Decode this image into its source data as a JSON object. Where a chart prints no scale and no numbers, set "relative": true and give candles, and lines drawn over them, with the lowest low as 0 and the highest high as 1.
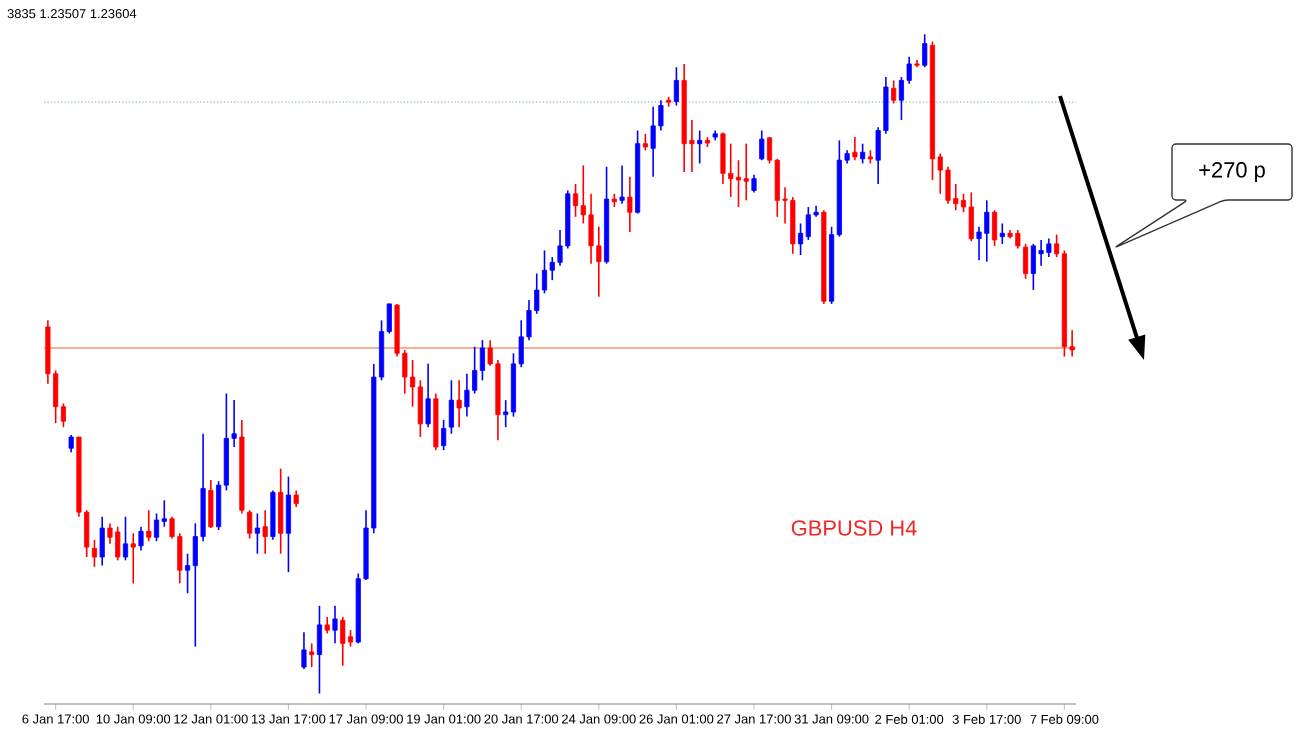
{
  "chart_data": {
    "type": "candlestick",
    "relative": true,
    "categories": [
      null,
      "6 Jan 17:00",
      null,
      null,
      null,
      null,
      null,
      null,
      null,
      null,
      null,
      "10 Jan 09:00",
      null,
      null,
      null,
      null,
      null,
      null,
      null,
      null,
      null,
      "12 Jan 01:00",
      null,
      null,
      null,
      null,
      null,
      null,
      null,
      null,
      null,
      "13 Jan 17:00",
      null,
      null,
      null,
      null,
      null,
      null,
      null,
      null,
      null,
      "17 Jan 09:00",
      null,
      null,
      null,
      null,
      null,
      null,
      null,
      null,
      null,
      "19 Jan 01:00",
      null,
      null,
      null,
      null,
      null,
      null,
      null,
      null,
      null,
      "20 Jan 17:00",
      null,
      null,
      null,
      null,
      null,
      null,
      null,
      null,
      null,
      "24 Jan 09:00",
      null,
      null,
      null,
      null,
      null,
      null,
      null,
      null,
      null,
      "26 Jan 01:00",
      null,
      null,
      null,
      null,
      null,
      null,
      null,
      null,
      null,
      "27 Jan 17:00",
      null,
      null,
      null,
      null,
      null,
      null,
      null,
      null,
      null,
      "31 Jan 09:00",
      null,
      null,
      null,
      null,
      null,
      null,
      null,
      null,
      null,
      "2 Feb 01:00",
      null,
      null,
      null,
      null,
      null,
      null,
      null,
      null,
      null,
      "3 Feb 17:00",
      null,
      null,
      null,
      null,
      null,
      null,
      null,
      null,
      null,
      "7 Feb 09:00",
      null
    ],
    "ohlc": [
      [
        0.556,
        0.566,
        0.47,
        0.485
      ],
      [
        0.485,
        0.49,
        0.41,
        0.435
      ],
      [
        0.435,
        0.44,
        0.404,
        0.413
      ],
      [
        0.372,
        0.392,
        0.366,
        0.389
      ],
      [
        0.389,
        0.389,
        0.268,
        0.275
      ],
      [
        0.275,
        0.278,
        0.207,
        0.222
      ],
      [
        0.22,
        0.233,
        0.192,
        0.207
      ],
      [
        0.207,
        0.268,
        0.194,
        0.251
      ],
      [
        0.251,
        0.258,
        0.227,
        0.237
      ],
      [
        0.245,
        0.253,
        0.202,
        0.207
      ],
      [
        0.207,
        0.268,
        0.202,
        0.227
      ],
      [
        0.227,
        0.243,
        0.167,
        0.222
      ],
      [
        0.224,
        0.253,
        0.217,
        0.246
      ],
      [
        0.246,
        0.278,
        0.231,
        0.237
      ],
      [
        0.237,
        0.273,
        0.231,
        0.263
      ],
      [
        0.261,
        0.293,
        0.253,
        0.265
      ],
      [
        0.265,
        0.268,
        0.235,
        0.238
      ],
      [
        0.238,
        0.243,
        0.167,
        0.187
      ],
      [
        0.187,
        0.212,
        0.152,
        0.194
      ],
      [
        0.194,
        0.258,
        0.071,
        0.238
      ],
      [
        0.238,
        0.394,
        0.231,
        0.311
      ],
      [
        0.308,
        0.324,
        0.251,
        0.253
      ],
      [
        0.253,
        0.322,
        0.248,
        0.316
      ],
      [
        0.316,
        0.455,
        0.308,
        0.387
      ],
      [
        0.387,
        0.445,
        0.374,
        0.394
      ],
      [
        0.389,
        0.415,
        0.273,
        0.278
      ],
      [
        0.275,
        0.278,
        0.235,
        0.243
      ],
      [
        0.243,
        0.273,
        0.212,
        0.251
      ],
      [
        0.253,
        0.278,
        0.212,
        0.238
      ],
      [
        0.238,
        0.308,
        0.233,
        0.305
      ],
      [
        0.305,
        0.341,
        0.212,
        0.243
      ],
      [
        0.243,
        0.329,
        0.184,
        0.301
      ],
      [
        0.301,
        0.308,
        0.283,
        0.288
      ],
      [
        0.04,
        0.093,
        0.037,
        0.066
      ],
      [
        0.063,
        0.076,
        0.04,
        0.059
      ],
      [
        0.059,
        0.133,
        0.0,
        0.104
      ],
      [
        0.104,
        0.116,
        0.091,
        0.096
      ],
      [
        0.096,
        0.133,
        0.076,
        0.113
      ],
      [
        0.111,
        0.116,
        0.042,
        0.076
      ],
      [
        0.086,
        0.096,
        0.071,
        0.078
      ],
      [
        0.078,
        0.182,
        0.076,
        0.174
      ],
      [
        0.174,
        0.278,
        0.172,
        0.251
      ],
      [
        0.251,
        0.5,
        0.243,
        0.48
      ],
      [
        0.48,
        0.566,
        0.475,
        0.549
      ],
      [
        0.549,
        0.591,
        0.546,
        0.591
      ],
      [
        0.589,
        0.591,
        0.511,
        0.516
      ],
      [
        0.516,
        0.521,
        0.455,
        0.48
      ],
      [
        0.48,
        0.506,
        0.435,
        0.465
      ],
      [
        0.465,
        0.475,
        0.389,
        0.409
      ],
      [
        0.409,
        0.5,
        0.404,
        0.447
      ],
      [
        0.447,
        0.455,
        0.369,
        0.374
      ],
      [
        0.376,
        0.415,
        0.369,
        0.402
      ],
      [
        0.404,
        0.475,
        0.394,
        0.445
      ],
      [
        0.445,
        0.475,
        0.404,
        0.433
      ],
      [
        0.435,
        0.485,
        0.42,
        0.46
      ],
      [
        0.46,
        0.526,
        0.455,
        0.49
      ],
      [
        0.49,
        0.536,
        0.475,
        0.524
      ],
      [
        0.524,
        0.536,
        0.497,
        0.5
      ],
      [
        0.5,
        0.506,
        0.384,
        0.423
      ],
      [
        0.423,
        0.445,
        0.404,
        0.427
      ],
      [
        0.427,
        0.516,
        0.42,
        0.5
      ],
      [
        0.5,
        0.566,
        0.495,
        0.541
      ],
      [
        0.541,
        0.597,
        0.536,
        0.581
      ],
      [
        0.581,
        0.637,
        0.576,
        0.612
      ],
      [
        0.612,
        0.672,
        0.607,
        0.642
      ],
      [
        0.642,
        0.662,
        0.627,
        0.654
      ],
      [
        0.654,
        0.703,
        0.649,
        0.679
      ],
      [
        0.679,
        0.763,
        0.675,
        0.758
      ],
      [
        0.758,
        0.773,
        0.723,
        0.74
      ],
      [
        0.74,
        0.801,
        0.713,
        0.726
      ],
      [
        0.726,
        0.758,
        0.652,
        0.679
      ],
      [
        0.679,
        0.708,
        0.602,
        0.655
      ],
      [
        0.655,
        0.799,
        0.652,
        0.75
      ],
      [
        0.75,
        0.758,
        0.738,
        0.746
      ],
      [
        0.748,
        0.801,
        0.743,
        0.753
      ],
      [
        0.753,
        0.784,
        0.7,
        0.73
      ],
      [
        0.73,
        0.854,
        0.728,
        0.834
      ],
      [
        0.834,
        0.849,
        0.824,
        0.829
      ],
      [
        0.827,
        0.89,
        0.784,
        0.861
      ],
      [
        0.861,
        0.9,
        0.854,
        0.892
      ],
      [
        0.9,
        0.905,
        0.89,
        0.897
      ],
      [
        0.898,
        0.95,
        0.892,
        0.93
      ],
      [
        0.93,
        0.955,
        0.791,
        0.834
      ],
      [
        0.839,
        0.87,
        0.791,
        0.834
      ],
      [
        0.834,
        0.854,
        0.804,
        0.839
      ],
      [
        0.839,
        0.844,
        0.829,
        0.835
      ],
      [
        0.844,
        0.854,
        0.839,
        0.849
      ],
      [
        0.849,
        0.851,
        0.773,
        0.789
      ],
      [
        0.789,
        0.834,
        0.753,
        0.781
      ],
      [
        0.783,
        0.809,
        0.738,
        0.779
      ],
      [
        0.781,
        0.834,
        0.748,
        0.777
      ],
      [
        0.763,
        0.787,
        0.76,
        0.781
      ],
      [
        0.811,
        0.854,
        0.809,
        0.841
      ],
      [
        0.843,
        0.844,
        0.804,
        0.809
      ],
      [
        0.809,
        0.811,
        0.723,
        0.748
      ],
      [
        0.75,
        0.768,
        0.713,
        0.748
      ],
      [
        0.748,
        0.753,
        0.667,
        0.682
      ],
      [
        0.682,
        0.713,
        0.665,
        0.698
      ],
      [
        0.693,
        0.738,
        0.688,
        0.726
      ],
      [
        0.726,
        0.74,
        0.723,
        0.73
      ],
      [
        0.73,
        0.733,
        0.591,
        0.595
      ],
      [
        0.595,
        0.708,
        0.591,
        0.696
      ],
      [
        0.696,
        0.839,
        0.693,
        0.809
      ],
      [
        0.809,
        0.824,
        0.804,
        0.819
      ],
      [
        0.821,
        0.844,
        0.809,
        0.814
      ],
      [
        0.811,
        0.834,
        0.804,
        0.821
      ],
      [
        0.814,
        0.824,
        0.804,
        0.811
      ],
      [
        0.809,
        0.859,
        0.773,
        0.854
      ],
      [
        0.854,
        0.935,
        0.849,
        0.92
      ],
      [
        0.918,
        0.93,
        0.895,
        0.9
      ],
      [
        0.9,
        0.935,
        0.87,
        0.93
      ],
      [
        0.93,
        0.966,
        0.925,
        0.955
      ],
      [
        0.955,
        0.961,
        0.95,
        0.953
      ],
      [
        0.953,
        1.0,
        0.95,
        0.986
      ],
      [
        0.983,
        0.989,
        0.779,
        0.811
      ],
      [
        0.814,
        0.819,
        0.758,
        0.794
      ],
      [
        0.794,
        0.799,
        0.743,
        0.748
      ],
      [
        0.751,
        0.773,
        0.733,
        0.743
      ],
      [
        0.748,
        0.758,
        0.73,
        0.738
      ],
      [
        0.738,
        0.76,
        0.686,
        0.69
      ],
      [
        0.69,
        0.708,
        0.657,
        0.7
      ],
      [
        0.698,
        0.748,
        0.655,
        0.73
      ],
      [
        0.73,
        0.733,
        0.679,
        0.688
      ],
      [
        0.693,
        0.713,
        0.682,
        0.698
      ],
      [
        0.698,
        0.703,
        0.69,
        0.693
      ],
      [
        0.698,
        0.703,
        0.675,
        0.679
      ],
      [
        0.677,
        0.682,
        0.629,
        0.637
      ],
      [
        0.637,
        0.682,
        0.612,
        0.679
      ],
      [
        0.667,
        0.688,
        0.649,
        0.672
      ],
      [
        0.669,
        0.69,
        0.662,
        0.682
      ],
      [
        0.682,
        0.696,
        0.662,
        0.667
      ],
      [
        0.667,
        0.672,
        0.511,
        0.526
      ],
      [
        0.526,
        0.551,
        0.511,
        0.521
      ]
    ],
    "colors": [
      "#ff0000",
      "#ff0000",
      "#ff0000",
      "#0000ff",
      "#ff0000",
      "#ff0000",
      "#ff0000",
      "#0000ff",
      "#ff0000",
      "#ff0000",
      "#0000ff",
      "#ff0000",
      "#0000ff",
      "#ff0000",
      "#0000ff",
      "#0000ff",
      "#ff0000",
      "#ff0000",
      "#0000ff",
      "#0000ff",
      "#0000ff",
      "#ff0000",
      "#0000ff",
      "#0000ff",
      "#0000ff",
      "#ff0000",
      "#ff0000",
      "#0000ff",
      "#ff0000",
      "#0000ff",
      "#ff0000",
      "#0000ff",
      "#ff0000",
      "#0000ff",
      "#ff0000",
      "#0000ff",
      "#ff0000",
      "#0000ff",
      "#ff0000",
      "#ff0000",
      "#0000ff",
      "#0000ff",
      "#0000ff",
      "#0000ff",
      "#0000ff",
      "#ff0000",
      "#ff0000",
      "#ff0000",
      "#ff0000",
      "#0000ff",
      "#ff0000",
      "#0000ff",
      "#0000ff",
      "#ff0000",
      "#0000ff",
      "#0000ff",
      "#0000ff",
      "#ff0000",
      "#ff0000",
      "#0000ff",
      "#0000ff",
      "#0000ff",
      "#0000ff",
      "#0000ff",
      "#0000ff",
      "#0000ff",
      "#0000ff",
      "#0000ff",
      "#ff0000",
      "#ff0000",
      "#ff0000",
      "#ff0000",
      "#0000ff",
      "#ff0000",
      "#0000ff",
      "#ff0000",
      "#0000ff",
      "#ff0000",
      "#0000ff",
      "#0000ff",
      "#ff0000",
      "#0000ff",
      "#ff0000",
      "#ff0000",
      "#0000ff",
      "#ff0000",
      "#0000ff",
      "#ff0000",
      "#ff0000",
      "#ff0000",
      "#ff0000",
      "#0000ff",
      "#0000ff",
      "#ff0000",
      "#ff0000",
      "#ff0000",
      "#ff0000",
      "#0000ff",
      "#0000ff",
      "#0000ff",
      "#ff0000",
      "#0000ff",
      "#0000ff",
      "#0000ff",
      "#ff0000",
      "#0000ff",
      "#ff0000",
      "#0000ff",
      "#0000ff",
      "#ff0000",
      "#0000ff",
      "#0000ff",
      "#ff0000",
      "#0000ff",
      "#ff0000",
      "#ff0000",
      "#ff0000",
      "#ff0000",
      "#ff0000",
      "#ff0000",
      "#0000ff",
      "#0000ff",
      "#ff0000",
      "#0000ff",
      "#ff0000",
      "#ff0000",
      "#ff0000",
      "#0000ff",
      "#0000ff",
      "#0000ff",
      "#ff0000",
      "#ff0000",
      "#ff0000"
    ],
    "ref_lines": [
      {
        "axis": "y",
        "value": 0.897,
        "color": "#9ccc9c",
        "line_style": "dotted"
      },
      {
        "axis": "y",
        "value": 0.524,
        "color": "#f4946c",
        "line_style": "solid"
      }
    ],
    "annotations": [
      "3835 1.23507 1.23604",
      "GBPUSD H4",
      "+270 p"
    ]
  }
}
